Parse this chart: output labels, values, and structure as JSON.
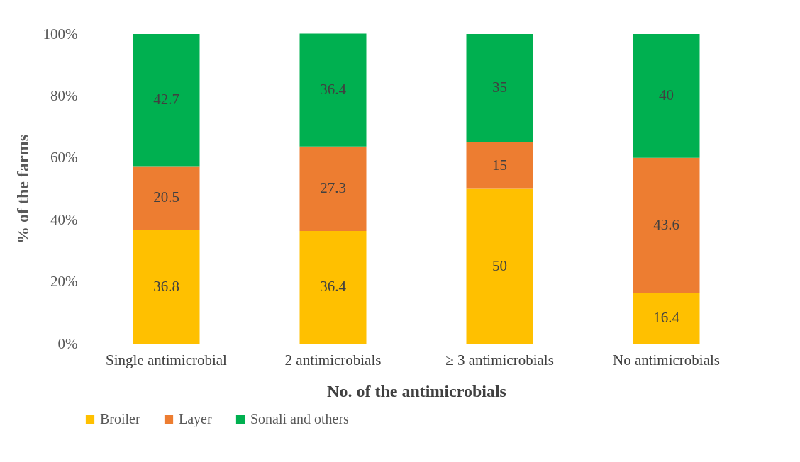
{
  "chart_data": {
    "type": "bar",
    "stacked": true,
    "xlabel": "No. of the antimicrobials",
    "ylabel": "% of the farms",
    "categories": [
      "Single antimicrobial",
      "2 antimicrobials",
      "≥ 3 antimicrobials",
      "No antimicrobials"
    ],
    "series": [
      {
        "name": "Broiler",
        "color": "#ffc000",
        "values": [
          36.8,
          36.4,
          50,
          16.4
        ]
      },
      {
        "name": "Layer",
        "color": "#ed7d31",
        "values": [
          20.5,
          27.3,
          15,
          43.6
        ]
      },
      {
        "name": "Sonali and others",
        "color": "#00b050",
        "values": [
          42.7,
          36.4,
          35,
          40
        ]
      }
    ],
    "ylim": [
      0,
      100
    ],
    "yticks": [
      {
        "value": 0,
        "label": "0%"
      },
      {
        "value": 20,
        "label": "20%"
      },
      {
        "value": 40,
        "label": "40%"
      },
      {
        "value": 60,
        "label": "60%"
      },
      {
        "value": 80,
        "label": "80%"
      },
      {
        "value": 100,
        "label": "100%"
      }
    ],
    "data_labels": true,
    "legend": "bottom",
    "grid": false
  }
}
